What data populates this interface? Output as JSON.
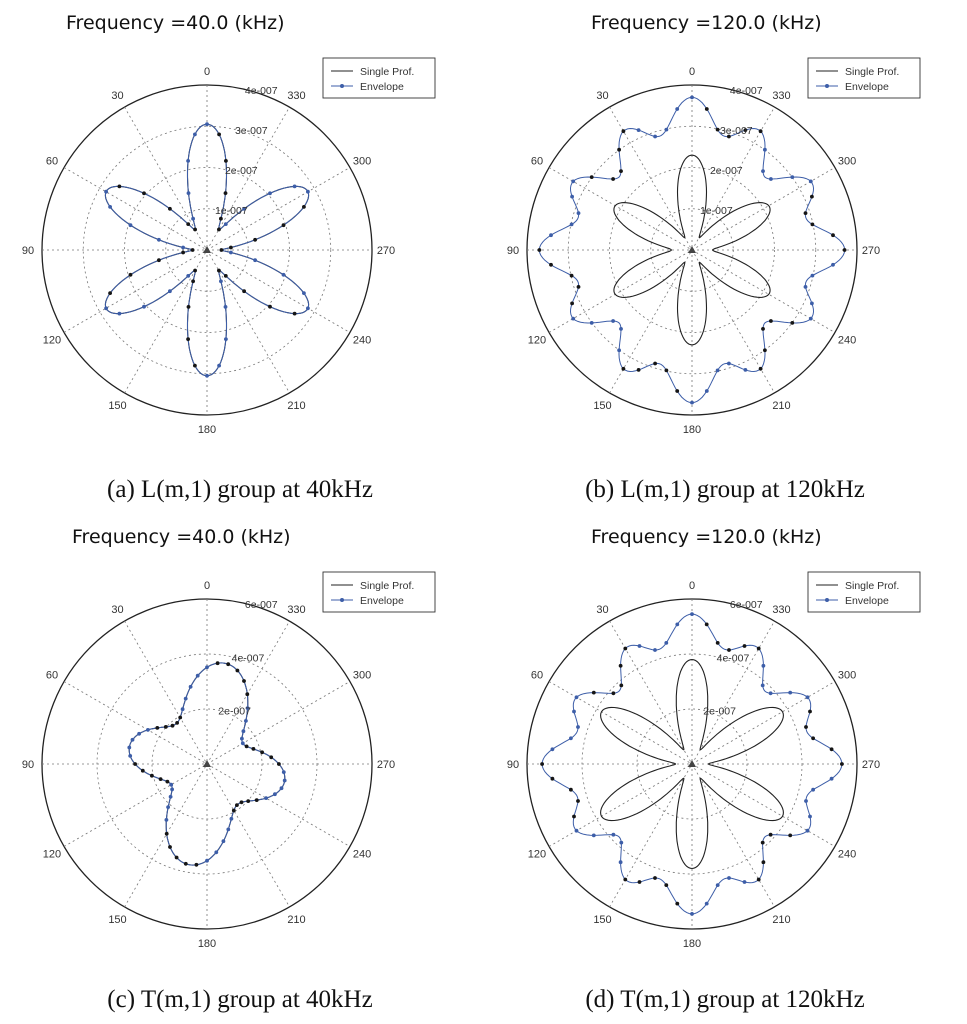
{
  "panels": [
    {
      "title": "Frequency =40.0 (kHz)",
      "caption": "(a) L(m,1) group at 40kHz",
      "legend": [
        "Single Prof.",
        "Envelope"
      ],
      "angle_labels": [
        "0",
        "30",
        "60",
        "90",
        "120",
        "150",
        "180",
        "210",
        "240",
        "270",
        "300",
        "330"
      ],
      "radial_labels": [
        "1e-007",
        "2e-007",
        "3e-007",
        "4e-007"
      ]
    },
    {
      "title": "Frequency =120.0 (kHz)",
      "caption": "(b) L(m,1) group at 120kHz",
      "legend": [
        "Single Prof.",
        "Envelope"
      ],
      "angle_labels": [
        "0",
        "30",
        "60",
        "90",
        "120",
        "150",
        "180",
        "210",
        "240",
        "270",
        "300",
        "330"
      ],
      "radial_labels": [
        "1e-007",
        "2e-007",
        "3e-007",
        "4e-007"
      ]
    },
    {
      "title": "Frequency =40.0 (kHz)",
      "caption": "(c) T(m,1) group at 40kHz",
      "legend": [
        "Single Prof.",
        "Envelope"
      ],
      "angle_labels": [
        "0",
        "30",
        "60",
        "90",
        "120",
        "150",
        "180",
        "210",
        "240",
        "270",
        "300",
        "330"
      ],
      "radial_labels": [
        "2e-007",
        "4e-007",
        "6e-007"
      ]
    },
    {
      "title": "Frequency =120.0 (kHz)",
      "caption": "(d) T(m,1) group at 120kHz",
      "legend": [
        "Single Prof.",
        "Envelope"
      ],
      "angle_labels": [
        "0",
        "30",
        "60",
        "90",
        "120",
        "150",
        "180",
        "210",
        "240",
        "270",
        "300",
        "330"
      ],
      "radial_labels": [
        "2e-007",
        "4e-007",
        "6e-007"
      ]
    }
  ],
  "chart_data": [
    {
      "type": "polar-line",
      "title": "Frequency =40.0 (kHz)",
      "rlim": [
        0,
        4e-07
      ],
      "angle_direction": "counterclockwise, 0 at top",
      "grid": true,
      "legend_position": "top-right",
      "series": [
        {
          "name": "Single Prof.",
          "color": "#1a1a1a",
          "model": {
            "base": 1.7e-07,
            "lobes": [
              {
                "n": 6,
                "amp": 1.2e-07,
                "phase": 0
              },
              {
                "n": 2,
                "amp": 1.5e-08,
                "phase": 0
              }
            ]
          }
        },
        {
          "name": "Envelope",
          "color": "#3d5ea8",
          "markers": true,
          "model": {
            "base": 1.7e-07,
            "lobes": [
              {
                "n": 6,
                "amp": 1.2e-07,
                "phase": 0
              },
              {
                "n": 2,
                "amp": 1.5e-08,
                "phase": 0
              }
            ]
          }
        }
      ]
    },
    {
      "type": "polar-line",
      "title": "Frequency =120.0 (kHz)",
      "rlim": [
        0,
        4e-07
      ],
      "angle_direction": "counterclockwise, 0 at top",
      "grid": true,
      "legend_position": "top-right",
      "series": [
        {
          "name": "Single Prof.",
          "color": "#1a1a1a",
          "model": {
            "base": 1.3e-07,
            "lobes": [
              {
                "n": 6,
                "amp": 9e-08,
                "phase": 0
              },
              {
                "n": 4,
                "amp": 1e-08,
                "phase": 0
              }
            ]
          }
        },
        {
          "name": "Envelope",
          "color": "#3d5ea8",
          "markers": true,
          "model": {
            "base": 3.1e-07,
            "lobes": [
              {
                "n": 12,
                "amp": 3.5e-08,
                "phase": 0
              },
              {
                "n": 4,
                "amp": 2.5e-08,
                "phase": 0
              }
            ]
          }
        }
      ]
    },
    {
      "type": "polar-line",
      "title": "Frequency =40.0 (kHz)",
      "rlim": [
        0,
        6e-07
      ],
      "angle_direction": "counterclockwise, 0 at top",
      "grid": true,
      "legend_position": "top-right",
      "series": [
        {
          "name": "Single Prof.",
          "color": "#1a1a1a",
          "model": {
            "base": 2.5e-07,
            "lobes": [
              {
                "n": 4,
                "amp": 8e-08,
                "phase": 45
              },
              {
                "n": 2,
                "amp": 4.5e-08,
                "phase": 0
              }
            ]
          }
        },
        {
          "name": "Envelope",
          "color": "#3d5ea8",
          "markers": true,
          "model": {
            "base": 2.5e-07,
            "lobes": [
              {
                "n": 4,
                "amp": 8e-08,
                "phase": 45
              },
              {
                "n": 2,
                "amp": 4.5e-08,
                "phase": 0
              }
            ]
          }
        }
      ]
    },
    {
      "type": "polar-line",
      "title": "Frequency =120.0 (kHz)",
      "rlim": [
        0,
        6e-07
      ],
      "angle_direction": "counterclockwise, 0 at top",
      "grid": true,
      "legend_position": "top-right",
      "series": [
        {
          "name": "Single Prof.",
          "color": "#1a1a1a",
          "model": {
            "base": 2.2e-07,
            "lobes": [
              {
                "n": 6,
                "amp": 1.6e-07,
                "phase": 0
              }
            ]
          }
        },
        {
          "name": "Envelope",
          "color": "#3d5ea8",
          "markers": true,
          "model": {
            "base": 4.6e-07,
            "lobes": [
              {
                "n": 12,
                "amp": 4.5e-08,
                "phase": 0
              },
              {
                "n": 4,
                "amp": 4e-08,
                "phase": 0
              }
            ]
          }
        }
      ]
    }
  ]
}
